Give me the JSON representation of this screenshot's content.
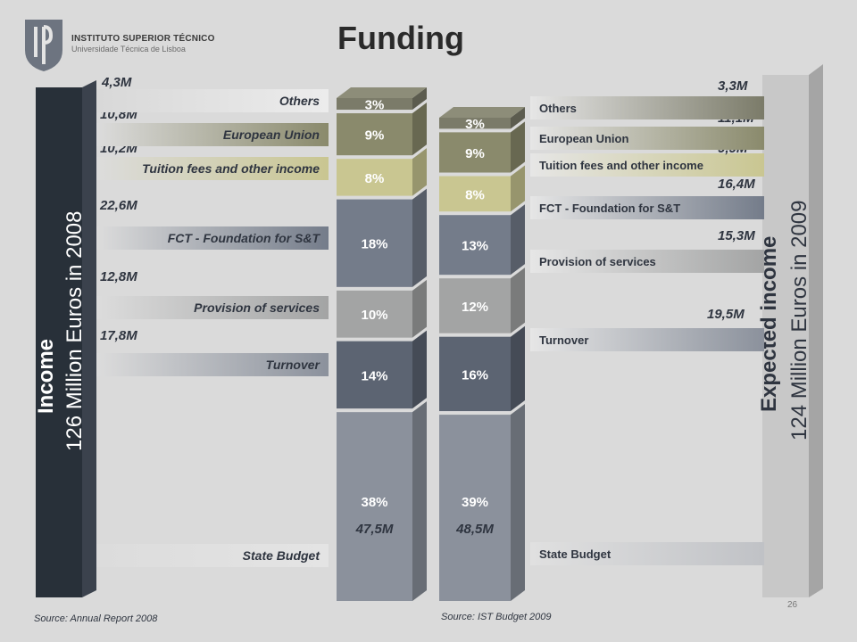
{
  "header": {
    "institution": "INSTITUTO SUPERIOR TÉCNICO",
    "university": "Universidade Técnica de Lisboa",
    "title": "Funding"
  },
  "left_panel": {
    "heading": "Income",
    "subheading": "126 Million Euros in 2008",
    "source": "Source: Annual Report 2008"
  },
  "right_panel": {
    "heading": "Expected income",
    "subheading": "124 Million Euros in 2009",
    "source": "Source: IST Budget 2009"
  },
  "page_number": "26",
  "chart_data": {
    "type": "bar",
    "stacked": true,
    "categories": [
      "2008",
      "2009"
    ],
    "series": [
      {
        "name": "State Budget",
        "values": [
          38,
          39
        ],
        "labels": [
          "38%",
          "39%"
        ],
        "amounts": [
          "47,5M",
          "48,5M"
        ],
        "color": "#8b919c"
      },
      {
        "name": "Turnover",
        "values": [
          14,
          16
        ],
        "labels": [
          "14%",
          "16%"
        ],
        "amounts": [
          "17,8M",
          "19,5M"
        ],
        "color": "#5c6472"
      },
      {
        "name": "Provision of services",
        "values": [
          10,
          12
        ],
        "labels": [
          "10%",
          "12%"
        ],
        "amounts": [
          "12,8M",
          "15,3M"
        ],
        "color": "#a3a4a4"
      },
      {
        "name": "FCT - Foundation for S&T",
        "values": [
          18,
          13
        ],
        "labels": [
          "18%",
          "13%"
        ],
        "amounts": [
          "22,6M",
          "16,4M"
        ],
        "color": "#747c8a"
      },
      {
        "name": "Tuition fees and other income",
        "values": [
          8,
          8
        ],
        "labels": [
          "8%",
          "8%"
        ],
        "amounts": [
          "10,2M",
          "9,9M"
        ],
        "color": "#c9c691"
      },
      {
        "name": "European Union",
        "values": [
          9,
          9
        ],
        "labels": [
          "9%",
          "9%"
        ],
        "amounts": [
          "10,8M",
          "11,1M"
        ],
        "color": "#8a8a6c"
      },
      {
        "name": "Others",
        "values": [
          3,
          3
        ],
        "labels": [
          "3%",
          "3%"
        ],
        "amounts": [
          "4,3M",
          "3,3M"
        ],
        "color": "#7b7b69"
      }
    ]
  }
}
